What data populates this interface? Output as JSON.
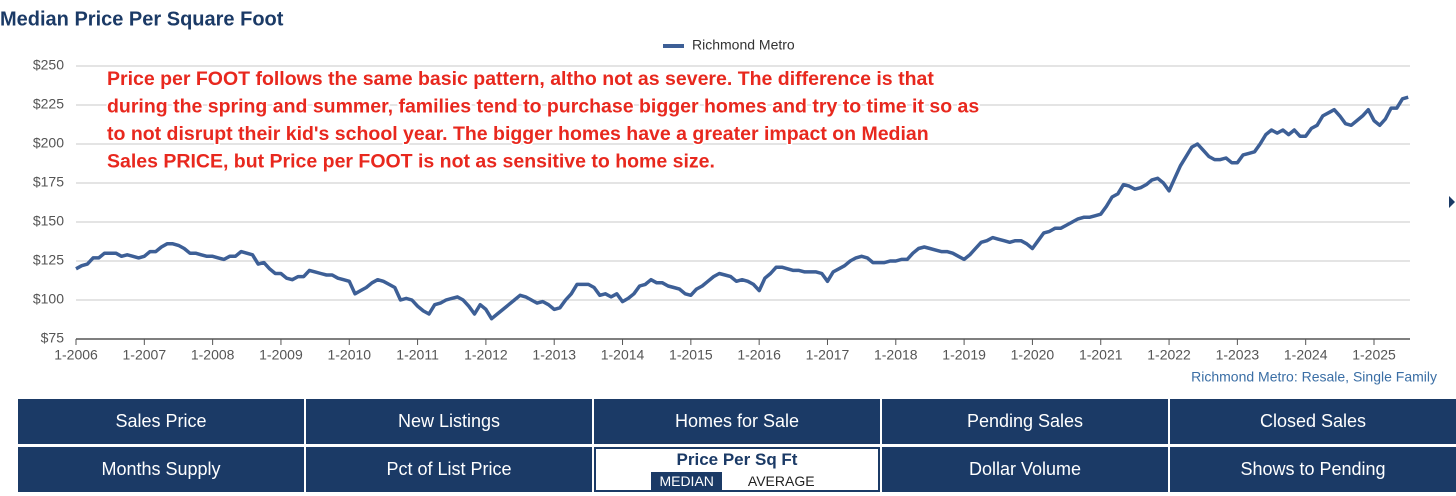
{
  "chart_data": {
    "type": "line",
    "title": "Median Price Per Square Foot",
    "annotation": [
      "Price per FOOT follows the same basic pattern, altho not as severe. The difference is that",
      "during the spring and summer, families tend to purchase bigger homes and try to time it so as",
      "to not disrupt their kid's school year.  The bigger homes have a greater impact on Median",
      "Sales PRICE, but Price per FOOT is not as sensitive to home size."
    ],
    "source": "Richmond Metro: Resale, Single Family",
    "categories": [
      "1-2006",
      null,
      null,
      null,
      null,
      null,
      null,
      null,
      null,
      null,
      null,
      null,
      "1-2007",
      null,
      null,
      null,
      null,
      null,
      null,
      null,
      null,
      null,
      null,
      null,
      "1-2008",
      null,
      null,
      null,
      null,
      null,
      null,
      null,
      null,
      null,
      null,
      null,
      "1-2009",
      null,
      null,
      null,
      null,
      null,
      null,
      null,
      null,
      null,
      null,
      null,
      "1-2010",
      null,
      null,
      null,
      null,
      null,
      null,
      null,
      null,
      null,
      null,
      null,
      "1-2011",
      null,
      null,
      null,
      null,
      null,
      null,
      null,
      null,
      null,
      null,
      null,
      "1-2012",
      null,
      null,
      null,
      null,
      null,
      null,
      null,
      null,
      null,
      null,
      null,
      "1-2013",
      null,
      null,
      null,
      null,
      null,
      null,
      null,
      null,
      null,
      null,
      null,
      "1-2014",
      null,
      null,
      null,
      null,
      null,
      null,
      null,
      null,
      null,
      null,
      null,
      "1-2015",
      null,
      null,
      null,
      null,
      null,
      null,
      null,
      null,
      null,
      null,
      null,
      "1-2016",
      null,
      null,
      null,
      null,
      null,
      null,
      null,
      null,
      null,
      null,
      null,
      "1-2017",
      null,
      null,
      null,
      null,
      null,
      null,
      null,
      null,
      null,
      null,
      null,
      "1-2018",
      null,
      null,
      null,
      null,
      null,
      null,
      null,
      null,
      null,
      null,
      null,
      "1-2019",
      null,
      null,
      null,
      null,
      null,
      null,
      null,
      null,
      null,
      null,
      null,
      "1-2020",
      null,
      null,
      null,
      null,
      null,
      null,
      null,
      null,
      null,
      null,
      null,
      "1-2021",
      null,
      null,
      null,
      null,
      null,
      null,
      null,
      null,
      null,
      null,
      null,
      "1-2022",
      null,
      null,
      null,
      null,
      null,
      null,
      null,
      null,
      null,
      null,
      null,
      "1-2023",
      null,
      null,
      null,
      null,
      null,
      null,
      null,
      null,
      null,
      null,
      null,
      "1-2024",
      null,
      null,
      null,
      null,
      null,
      null,
      null,
      null,
      null,
      null,
      null,
      "1-2025",
      null,
      null,
      null,
      null,
      null,
      null
    ],
    "series": [
      {
        "name": "Richmond Metro",
        "color": "#3d5f96",
        "values": [
          120,
          122,
          123,
          127,
          127,
          130,
          130,
          130,
          128,
          129,
          128,
          127,
          128,
          131,
          131,
          134,
          136,
          136,
          135,
          133,
          130,
          130,
          129,
          128,
          128,
          127,
          126,
          128,
          128,
          131,
          130,
          129,
          123,
          124,
          120,
          117,
          117,
          114,
          113,
          115,
          115,
          119,
          118,
          117,
          116,
          116,
          114,
          113,
          112,
          104,
          106,
          108,
          111,
          113,
          112,
          110,
          108,
          100,
          101,
          100,
          96,
          93,
          91,
          97,
          98,
          100,
          101,
          102,
          100,
          96,
          91,
          97,
          94,
          88,
          91,
          94,
          97,
          100,
          103,
          102,
          100,
          98,
          99,
          97,
          94,
          95,
          100,
          104,
          110,
          110,
          110,
          108,
          103,
          104,
          102,
          104,
          99,
          101,
          104,
          109,
          110,
          113,
          111,
          111,
          109,
          108,
          107,
          104,
          103,
          107,
          109,
          112,
          115,
          117,
          116,
          115,
          112,
          113,
          112,
          110,
          106,
          114,
          117,
          121,
          121,
          120,
          119,
          119,
          118,
          118,
          118,
          117,
          112,
          118,
          120,
          122,
          125,
          127,
          128,
          127,
          124,
          124,
          124,
          125,
          125,
          126,
          126,
          130,
          133,
          134,
          133,
          132,
          131,
          131,
          130,
          128,
          126,
          129,
          133,
          137,
          138,
          140,
          139,
          138,
          137,
          138,
          138,
          136,
          133,
          138,
          143,
          144,
          146,
          146,
          148,
          150,
          152,
          153,
          153,
          154,
          155,
          160,
          166,
          168,
          174,
          173,
          171,
          172,
          174,
          177,
          178,
          175,
          170,
          178,
          186,
          192,
          198,
          200,
          196,
          192,
          190,
          190,
          191,
          188,
          188,
          193,
          194,
          195,
          200,
          206,
          209,
          207,
          209,
          206,
          209,
          205,
          205,
          210,
          212,
          218,
          220,
          222,
          218,
          213,
          212,
          215,
          218,
          222,
          215,
          212,
          216,
          223,
          223,
          229,
          230
        ]
      }
    ],
    "ylim": [
      75,
      250
    ],
    "yticks": [
      {
        "value": 75,
        "label": "$75"
      },
      {
        "value": 100,
        "label": "$100"
      },
      {
        "value": 125,
        "label": "$125"
      },
      {
        "value": 150,
        "label": "$150"
      },
      {
        "value": 175,
        "label": "$175"
      },
      {
        "value": 200,
        "label": "$200"
      },
      {
        "value": 225,
        "label": "$225"
      },
      {
        "value": 250,
        "label": "$250"
      }
    ],
    "grid": true
  },
  "tabs": {
    "rows": [
      [
        "Sales Price",
        "New Listings",
        "Homes for Sale",
        "Pending Sales",
        "Closed Sales"
      ],
      [
        "Months Supply",
        "Pct of List Price",
        null,
        "Dollar Volume",
        "Shows to Pending"
      ]
    ],
    "selected": {
      "label": "Price Per Sq Ft",
      "options": [
        "MEDIAN",
        "AVERAGE"
      ]
    }
  }
}
